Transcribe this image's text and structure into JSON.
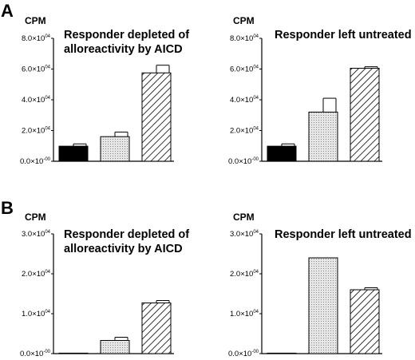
{
  "figure": {
    "panels": [
      {
        "letter": "A"
      },
      {
        "letter": "B"
      }
    ]
  },
  "chart_data": [
    {
      "type": "bar",
      "panel": "A",
      "title_lines": [
        "Responder depleted of",
        "alloreactivity by AICD"
      ],
      "ylabel": "CPM",
      "ylim": [
        0,
        80000
      ],
      "yticks": [
        0,
        20000,
        40000,
        60000,
        80000
      ],
      "ytick_labels": [
        {
          "base": "0.0×10",
          "exp": "-00"
        },
        {
          "base": "2.0×10",
          "exp": "04"
        },
        {
          "base": "4.0×10",
          "exp": "04"
        },
        {
          "base": "6.0×10",
          "exp": "04"
        },
        {
          "base": "8.0×10",
          "exp": "04"
        }
      ],
      "values": [
        9800,
        16000,
        57500
      ],
      "errors": [
        1500,
        3000,
        5000
      ],
      "bar_styles": [
        "solid-black",
        "dotted-gray",
        "hatched"
      ],
      "colors": {
        "solid": "#000000",
        "dotted": "#cfcfcf",
        "hatch": "#000000"
      }
    },
    {
      "type": "bar",
      "panel": "A",
      "title_lines": [
        "Responder left untreated"
      ],
      "ylabel": "CPM",
      "ylim": [
        0,
        80000
      ],
      "yticks": [
        0,
        20000,
        40000,
        60000,
        80000
      ],
      "ytick_labels": [
        {
          "base": "0.0×10",
          "exp": "-00"
        },
        {
          "base": "2.0×10",
          "exp": "04"
        },
        {
          "base": "4.0×10",
          "exp": "04"
        },
        {
          "base": "6.0×10",
          "exp": "04"
        },
        {
          "base": "8.0×10",
          "exp": "04"
        }
      ],
      "values": [
        9800,
        32000,
        60500
      ],
      "errors": [
        1500,
        9000,
        1000
      ],
      "bar_styles": [
        "solid-black",
        "dotted-gray",
        "hatched"
      ],
      "colors": {
        "solid": "#000000",
        "dotted": "#cfcfcf",
        "hatch": "#000000"
      }
    },
    {
      "type": "bar",
      "panel": "B",
      "title_lines": [
        "Responder depleted of",
        "alloreactivity by AICD"
      ],
      "ylabel": "CPM",
      "ylim": [
        0,
        30000
      ],
      "yticks": [
        0,
        10000,
        20000,
        30000
      ],
      "ytick_labels": [
        {
          "base": "0.0×10",
          "exp": "-00"
        },
        {
          "base": "1.0×10",
          "exp": "04"
        },
        {
          "base": "2.0×10",
          "exp": "04"
        },
        {
          "base": "3.0×10",
          "exp": "04"
        }
      ],
      "values": [
        100,
        3300,
        12700
      ],
      "errors": [
        0,
        800,
        600
      ],
      "bar_styles": [
        "solid-black",
        "dotted-gray",
        "hatched"
      ],
      "colors": {
        "solid": "#000000",
        "dotted": "#cfcfcf",
        "hatch": "#000000"
      }
    },
    {
      "type": "bar",
      "panel": "B",
      "title_lines": [
        "Responder left untreated"
      ],
      "ylabel": "CPM",
      "ylim": [
        0,
        30000
      ],
      "yticks": [
        0,
        10000,
        20000,
        30000
      ],
      "ytick_labels": [
        {
          "base": "0.0×10",
          "exp": "-00"
        },
        {
          "base": "1.0×10",
          "exp": "04"
        },
        {
          "base": "2.0×10",
          "exp": "04"
        },
        {
          "base": "3.0×10",
          "exp": "04"
        }
      ],
      "values": [
        100,
        24000,
        16000
      ],
      "errors": [
        0,
        0,
        500
      ],
      "bar_styles": [
        "solid-black",
        "dotted-gray",
        "hatched"
      ],
      "colors": {
        "solid": "#000000",
        "dotted": "#cfcfcf",
        "hatch": "#000000"
      }
    }
  ]
}
